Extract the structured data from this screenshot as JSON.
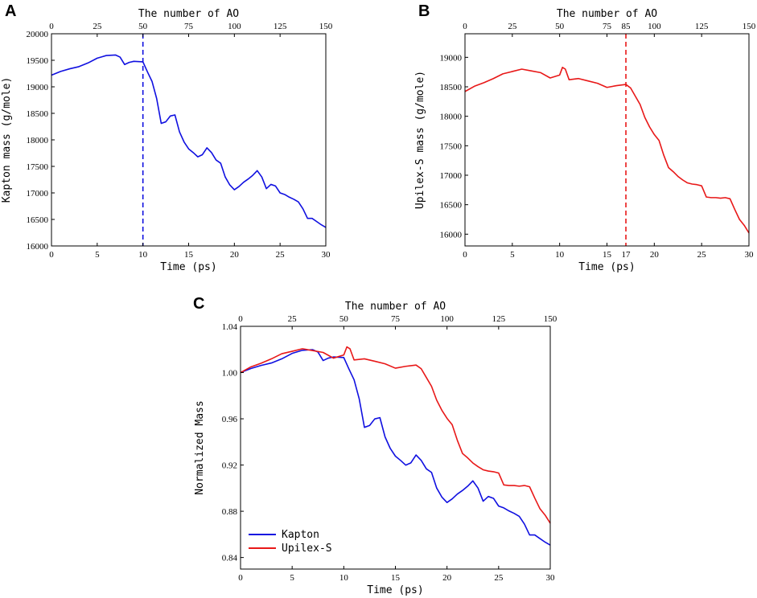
{
  "chart_data": [
    {
      "id": "A",
      "panel_label": "A",
      "type": "line",
      "xlabel": "Time (ps)",
      "ylabel": "Kapton mass (g/mole)",
      "top_axis_label": "The number of AO",
      "xlim": [
        0,
        30
      ],
      "ylim": [
        16000,
        20000
      ],
      "top_lim": [
        0,
        150
      ],
      "xticks": [
        0,
        5,
        10,
        15,
        20,
        25,
        30
      ],
      "yticks": [
        16000,
        16500,
        17000,
        17500,
        18000,
        18500,
        19000,
        19500,
        20000
      ],
      "top_ticks": [
        0,
        25,
        50,
        75,
        100,
        125,
        150
      ],
      "marker_line": {
        "x": 10,
        "style": "dashed",
        "color": "#1010e0"
      },
      "series": [
        {
          "name": "Kapton",
          "color": "#1010e0",
          "x": [
            0,
            1,
            2,
            3,
            4,
            5,
            6,
            7,
            7.5,
            8,
            8.5,
            9,
            10,
            10.5,
            11,
            11.5,
            12,
            12.5,
            13,
            13.5,
            14,
            14.5,
            15,
            15.5,
            16,
            16.5,
            17,
            17.5,
            18,
            18.5,
            19,
            19.5,
            20,
            20.5,
            21,
            21.5,
            22,
            22.5,
            23,
            23.5,
            24,
            24.5,
            25,
            25.5,
            26,
            26.5,
            27,
            27.5,
            28,
            28.5,
            29,
            29.5,
            30
          ],
          "values": [
            19220,
            19290,
            19340,
            19380,
            19450,
            19540,
            19590,
            19600,
            19560,
            19420,
            19460,
            19480,
            19470,
            19280,
            19100,
            18780,
            18310,
            18340,
            18450,
            18470,
            18150,
            17960,
            17830,
            17760,
            17680,
            17720,
            17850,
            17760,
            17620,
            17560,
            17300,
            17150,
            17060,
            17120,
            17200,
            17260,
            17330,
            17420,
            17300,
            17080,
            17160,
            17130,
            17000,
            16970,
            16920,
            16880,
            16830,
            16700,
            16520,
            16520,
            16460,
            16400,
            16350
          ]
        }
      ]
    },
    {
      "id": "B",
      "panel_label": "B",
      "type": "line",
      "xlabel": "Time (ps)",
      "ylabel": "Upilex-S mass (g/mole)",
      "top_axis_label": "The number of AO",
      "xlim": [
        0,
        30
      ],
      "ylim": [
        15800,
        19400
      ],
      "top_lim": [
        0,
        150
      ],
      "xticks": [
        0,
        5,
        10,
        15,
        20,
        25,
        30
      ],
      "yticks": [
        16000,
        16500,
        17000,
        17500,
        18000,
        18500,
        19000
      ],
      "top_ticks": [
        0,
        25,
        50,
        75,
        100,
        125,
        150
      ],
      "marker_line": {
        "x": 17,
        "style": "dashed",
        "color": "#e81818",
        "label": "17",
        "top_label": "85"
      },
      "series": [
        {
          "name": "Upilex-S",
          "color": "#e81818",
          "x": [
            0,
            1,
            2,
            3,
            4,
            5,
            6,
            7,
            8,
            9,
            10,
            10.3,
            10.6,
            11,
            12,
            13,
            14,
            15,
            16,
            17,
            17.5,
            18,
            18.5,
            19,
            19.5,
            20,
            20.5,
            21,
            21.5,
            22,
            22.5,
            23,
            23.5,
            24,
            24.5,
            25,
            25.5,
            26,
            26.5,
            27,
            27.5,
            28,
            28.5,
            29,
            29.5,
            30
          ],
          "values": [
            18420,
            18510,
            18570,
            18640,
            18720,
            18760,
            18800,
            18770,
            18740,
            18650,
            18700,
            18830,
            18800,
            18620,
            18640,
            18600,
            18560,
            18490,
            18520,
            18540,
            18480,
            18340,
            18200,
            17980,
            17820,
            17690,
            17590,
            17340,
            17130,
            17060,
            16980,
            16920,
            16870,
            16850,
            16840,
            16820,
            16630,
            16620,
            16620,
            16610,
            16620,
            16600,
            16420,
            16250,
            16150,
            16020
          ]
        }
      ]
    },
    {
      "id": "C",
      "panel_label": "C",
      "type": "line",
      "xlabel": "Time (ps)",
      "ylabel": "Normalized Mass",
      "top_axis_label": "The number of AO",
      "xlim": [
        0,
        30
      ],
      "ylim": [
        0.83,
        1.04
      ],
      "top_lim": [
        0,
        150
      ],
      "xticks": [
        0,
        5,
        10,
        15,
        20,
        25,
        30
      ],
      "yticks": [
        0.84,
        0.88,
        0.92,
        0.96,
        1.0,
        1.04
      ],
      "ytick_labels": [
        "0.84",
        "0.88",
        "0.92",
        "0.96",
        "1.00",
        "1.04"
      ],
      "top_ticks": [
        0,
        25,
        50,
        75,
        100,
        125,
        150
      ],
      "legend_position": "bottom-left",
      "series": [
        {
          "name": "Kapton",
          "color": "#1010e0",
          "x": [
            0,
            1,
            2,
            3,
            4,
            5,
            6,
            7,
            7.5,
            8,
            8.5,
            9,
            10,
            10.5,
            11,
            11.5,
            12,
            12.5,
            13,
            13.5,
            14,
            14.5,
            15,
            15.5,
            16,
            16.5,
            17,
            17.5,
            18,
            18.5,
            19,
            19.5,
            20,
            20.5,
            21,
            21.5,
            22,
            22.5,
            23,
            23.5,
            24,
            24.5,
            25,
            25.5,
            26,
            26.5,
            27,
            27.5,
            28,
            28.5,
            29,
            29.5,
            30
          ],
          "values": [
            1.0,
            1.0035,
            1.0062,
            1.0083,
            1.0119,
            1.0166,
            1.0193,
            1.0198,
            1.0177,
            1.0104,
            1.0125,
            1.0135,
            1.013,
            1.0031,
            0.9937,
            0.9771,
            0.9526,
            0.9542,
            0.9599,
            0.961,
            0.9443,
            0.9344,
            0.9277,
            0.924,
            0.9199,
            0.9219,
            0.9287,
            0.924,
            0.9167,
            0.9136,
            0.9001,
            0.8923,
            0.8876,
            0.8907,
            0.8949,
            0.898,
            0.9017,
            0.9063,
            0.9001,
            0.8887,
            0.8928,
            0.8912,
            0.8845,
            0.8829,
            0.8803,
            0.8782,
            0.8756,
            0.8689,
            0.8595,
            0.8595,
            0.8564,
            0.8533,
            0.8507
          ]
        },
        {
          "name": "Upilex-S",
          "color": "#e81818",
          "x": [
            0,
            1,
            2,
            3,
            4,
            5,
            6,
            7,
            8,
            9,
            10,
            10.3,
            10.6,
            11,
            12,
            13,
            14,
            15,
            16,
            17,
            17.5,
            18,
            18.5,
            19,
            19.5,
            20,
            20.5,
            21,
            21.5,
            22,
            22.5,
            23,
            23.5,
            24,
            24.5,
            25,
            25.5,
            26,
            26.5,
            27,
            27.5,
            28,
            28.5,
            29,
            29.5,
            30
          ],
          "values": [
            1.0,
            1.0049,
            1.0081,
            1.0119,
            1.0163,
            1.0184,
            1.0206,
            1.019,
            1.0174,
            1.0125,
            1.0152,
            1.0222,
            1.0206,
            1.0109,
            1.0119,
            1.0098,
            1.0076,
            1.0038,
            1.0054,
            1.0065,
            1.0033,
            0.9957,
            0.9881,
            0.9761,
            0.9674,
            0.9604,
            0.9549,
            0.9414,
            0.93,
            0.9262,
            0.9218,
            0.9186,
            0.9159,
            0.9148,
            0.9142,
            0.9131,
            0.9028,
            0.9023,
            0.9023,
            0.9017,
            0.9023,
            0.9012,
            0.8914,
            0.8822,
            0.8767,
            0.8697
          ]
        }
      ]
    }
  ]
}
